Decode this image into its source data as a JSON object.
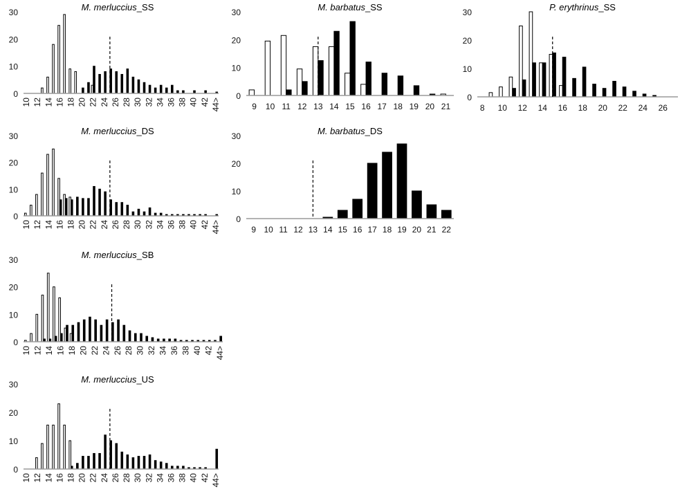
{
  "figure": {
    "colors": {
      "open_bars": "#ffffff",
      "filled_bars": "#000000",
      "outline": "#000000"
    }
  },
  "chart_data": [
    {
      "type": "bar",
      "title_italic": "M. merluccius",
      "title_suffix": "_SS",
      "categories": [
        "10",
        "11",
        "12",
        "13",
        "14",
        "15",
        "16",
        "17",
        "18",
        "19",
        "20",
        "21",
        "22",
        "23",
        "24",
        "25",
        "26",
        "27",
        "28",
        "29",
        "30",
        "31",
        "32",
        "33",
        "34",
        "35",
        "36",
        "37",
        "38",
        "39",
        "40",
        "41",
        "42",
        "43",
        "44>"
      ],
      "x_tick_labels": [
        "10",
        "12",
        "14",
        "16",
        "18",
        "20",
        "22",
        "24",
        "26",
        "28",
        "30",
        "32",
        "34",
        "36",
        "38",
        "40",
        "42",
        "44>"
      ],
      "y_ticks": [
        0,
        10,
        20,
        30
      ],
      "ylim": [
        0,
        30
      ],
      "reference_line_x": 25,
      "series": [
        {
          "style": "open",
          "values": [
            0,
            0,
            0,
            2,
            6,
            18,
            25,
            29,
            9,
            8,
            0,
            0,
            3,
            0,
            0,
            0,
            0,
            0,
            0,
            0,
            0,
            0,
            0,
            0,
            0,
            0,
            0,
            0,
            0,
            0,
            0,
            0,
            0,
            0,
            0
          ]
        },
        {
          "style": "filled",
          "values": [
            0,
            0,
            0,
            0,
            0,
            0,
            0,
            0,
            0,
            0,
            2,
            4,
            10,
            7,
            8,
            9,
            8,
            7,
            9,
            6,
            5,
            4,
            3,
            2,
            3,
            2,
            3,
            1,
            1,
            0,
            1,
            0,
            1,
            0,
            0.5
          ]
        }
      ]
    },
    {
      "type": "bar",
      "title_italic": "M. barbatus",
      "title_suffix": "_SS",
      "categories": [
        "9",
        "10",
        "11",
        "12",
        "13",
        "14",
        "15",
        "16",
        "17",
        "18",
        "19",
        "20",
        "21"
      ],
      "x_tick_labels": [
        "9",
        "10",
        "11",
        "12",
        "13",
        "14",
        "15",
        "16",
        "17",
        "18",
        "19",
        "20",
        "21"
      ],
      "y_ticks": [
        0,
        10,
        20,
        30
      ],
      "ylim": [
        0,
        30
      ],
      "reference_line_x": 13,
      "series": [
        {
          "style": "open",
          "values": [
            2,
            19.5,
            21.5,
            9.5,
            17.5,
            17.5,
            8,
            4,
            0,
            0,
            0,
            0,
            0.5
          ]
        },
        {
          "style": "filled",
          "values": [
            0,
            0,
            2,
            5,
            12.5,
            23,
            26.5,
            12,
            8,
            7,
            3.5,
            0.5,
            0
          ]
        }
      ]
    },
    {
      "type": "bar",
      "title_italic": "P. erythrinus",
      "title_suffix": "_SS",
      "categories": [
        "8",
        "9",
        "10",
        "11",
        "12",
        "13",
        "14",
        "15",
        "16",
        "17",
        "18",
        "19",
        "20",
        "21",
        "22",
        "23",
        "24",
        "25",
        "26",
        "27"
      ],
      "x_tick_labels": [
        "8",
        "10",
        "12",
        "14",
        "16",
        "18",
        "20",
        "22",
        "24",
        "26"
      ],
      "y_ticks": [
        0,
        10,
        20,
        30
      ],
      "ylim": [
        0,
        30
      ],
      "reference_line_x": 15,
      "series": [
        {
          "style": "open",
          "values": [
            0,
            1.5,
            3.5,
            7,
            25,
            30,
            12,
            15,
            4,
            0,
            0,
            0,
            0,
            0,
            0,
            0,
            0,
            0,
            0,
            0
          ]
        },
        {
          "style": "filled",
          "values": [
            0,
            0,
            0,
            3,
            6,
            12,
            12,
            15.5,
            14,
            6.5,
            10.5,
            4.5,
            3,
            5.5,
            3.5,
            2,
            1,
            0.5,
            0,
            0
          ]
        }
      ]
    },
    {
      "type": "bar",
      "title_italic": "M. merluccius",
      "title_suffix": "_DS",
      "categories": [
        "10",
        "11",
        "12",
        "13",
        "14",
        "15",
        "16",
        "17",
        "18",
        "19",
        "20",
        "21",
        "22",
        "23",
        "24",
        "25",
        "26",
        "27",
        "28",
        "29",
        "30",
        "31",
        "32",
        "33",
        "34",
        "35",
        "36",
        "37",
        "38",
        "39",
        "40",
        "41",
        "42",
        "43",
        "44>"
      ],
      "x_tick_labels": [
        "10",
        "12",
        "14",
        "16",
        "18",
        "20",
        "22",
        "24",
        "26",
        "28",
        "30",
        "32",
        "34",
        "36",
        "38",
        "40",
        "42",
        "44>"
      ],
      "y_ticks": [
        0,
        10,
        20,
        30
      ],
      "ylim": [
        0,
        30
      ],
      "reference_line_x": 25,
      "series": [
        {
          "style": "open",
          "values": [
            1,
            4,
            8,
            16,
            23,
            25,
            14,
            8,
            7,
            0,
            0,
            0,
            0,
            0,
            0,
            0,
            0,
            0,
            0,
            0,
            0,
            0,
            0,
            0,
            0,
            0,
            0,
            0,
            0,
            0,
            0,
            0,
            0,
            0,
            0
          ]
        },
        {
          "style": "filled",
          "values": [
            0,
            0,
            0,
            0,
            0,
            0,
            6,
            6.5,
            6,
            7,
            6.5,
            6.5,
            11,
            10,
            9,
            6,
            5,
            5,
            4,
            1.5,
            2.5,
            1.5,
            3,
            1,
            1,
            0.5,
            0.5,
            0.5,
            0.5,
            0.5,
            0.5,
            0.5,
            0.5,
            0,
            0.5
          ]
        }
      ]
    },
    {
      "type": "bar",
      "title_italic": "M. barbatus",
      "title_suffix": "_DS",
      "categories": [
        "9",
        "10",
        "11",
        "12",
        "13",
        "14",
        "15",
        "16",
        "17",
        "18",
        "19",
        "20",
        "21",
        "22"
      ],
      "x_tick_labels": [
        "9",
        "10",
        "11",
        "12",
        "13",
        "14",
        "15",
        "16",
        "17",
        "18",
        "19",
        "20",
        "21",
        "22"
      ],
      "y_ticks": [
        0,
        10,
        20,
        30
      ],
      "ylim": [
        0,
        30
      ],
      "reference_line_x": 13,
      "series": [
        {
          "style": "filled",
          "values": [
            0,
            0,
            0,
            0,
            0,
            0.5,
            3,
            7,
            20,
            24,
            27,
            10,
            5,
            3
          ]
        }
      ]
    },
    {
      "type": "bar",
      "title_italic": "M. merluccius",
      "title_suffix": "_SB",
      "categories": [
        "10",
        "11",
        "12",
        "13",
        "14",
        "15",
        "16",
        "17",
        "18",
        "19",
        "20",
        "21",
        "22",
        "23",
        "24",
        "25",
        "26",
        "27",
        "28",
        "29",
        "30",
        "31",
        "32",
        "33",
        "34",
        "35",
        "36",
        "37",
        "38",
        "39",
        "40",
        "41",
        "42",
        "43",
        "44>"
      ],
      "x_tick_labels": [
        "10",
        "12",
        "14",
        "16",
        "18",
        "20",
        "22",
        "24",
        "26",
        "28",
        "30",
        "32",
        "34",
        "36",
        "38",
        "40",
        "42",
        "44>"
      ],
      "y_ticks": [
        0,
        10,
        20,
        30
      ],
      "ylim": [
        0,
        30
      ],
      "reference_line_x": 25,
      "series": [
        {
          "style": "open",
          "values": [
            0.5,
            3,
            10,
            17,
            25,
            20,
            16,
            5,
            3,
            0,
            0,
            0,
            0,
            0,
            0,
            0,
            0,
            0,
            0,
            0,
            0,
            0,
            0,
            0,
            0,
            0,
            0,
            0,
            0,
            0,
            0,
            0,
            0,
            0,
            0
          ]
        },
        {
          "style": "filled",
          "values": [
            0,
            0,
            0,
            1,
            1,
            2,
            3,
            6,
            6,
            7,
            8,
            9,
            8,
            6,
            8,
            7,
            8,
            6,
            4,
            3,
            3,
            2,
            1.5,
            1,
            1,
            1,
            1,
            0.5,
            0.5,
            0.5,
            0.5,
            0.5,
            0.5,
            0.5,
            2
          ]
        }
      ]
    },
    {
      "type": "bar",
      "title_italic": "M. merluccius",
      "title_suffix": "_US",
      "categories": [
        "10",
        "11",
        "12",
        "13",
        "14",
        "15",
        "16",
        "17",
        "18",
        "19",
        "20",
        "21",
        "22",
        "23",
        "24",
        "25",
        "26",
        "27",
        "28",
        "29",
        "30",
        "31",
        "32",
        "33",
        "34",
        "35",
        "36",
        "37",
        "38",
        "39",
        "40",
        "41",
        "42",
        "43",
        "44>"
      ],
      "x_tick_labels": [
        "10",
        "12",
        "14",
        "16",
        "18",
        "20",
        "22",
        "24",
        "26",
        "28",
        "30",
        "32",
        "34",
        "36",
        "38",
        "40",
        "42",
        "44>"
      ],
      "y_ticks": [
        0,
        10,
        20,
        30
      ],
      "ylim": [
        0,
        30
      ],
      "reference_line_x": 25,
      "series": [
        {
          "style": "open",
          "values": [
            0,
            0,
            4,
            9,
            15.5,
            15.5,
            23,
            15.5,
            10,
            0,
            0,
            0,
            0,
            0,
            0,
            0,
            0,
            0,
            0,
            0,
            0,
            0,
            0,
            0,
            0,
            0,
            0,
            0,
            0,
            0,
            0,
            0,
            0,
            0,
            0
          ]
        },
        {
          "style": "filled",
          "values": [
            0,
            0,
            0,
            0,
            0,
            0,
            0,
            0,
            1,
            2,
            4.5,
            4.5,
            5.5,
            5.5,
            12,
            10,
            9,
            6,
            5,
            4,
            4.5,
            4.5,
            5,
            3,
            2.5,
            2,
            1,
            1,
            1,
            0.5,
            0.5,
            0.5,
            0.5,
            0,
            7
          ]
        }
      ]
    }
  ]
}
